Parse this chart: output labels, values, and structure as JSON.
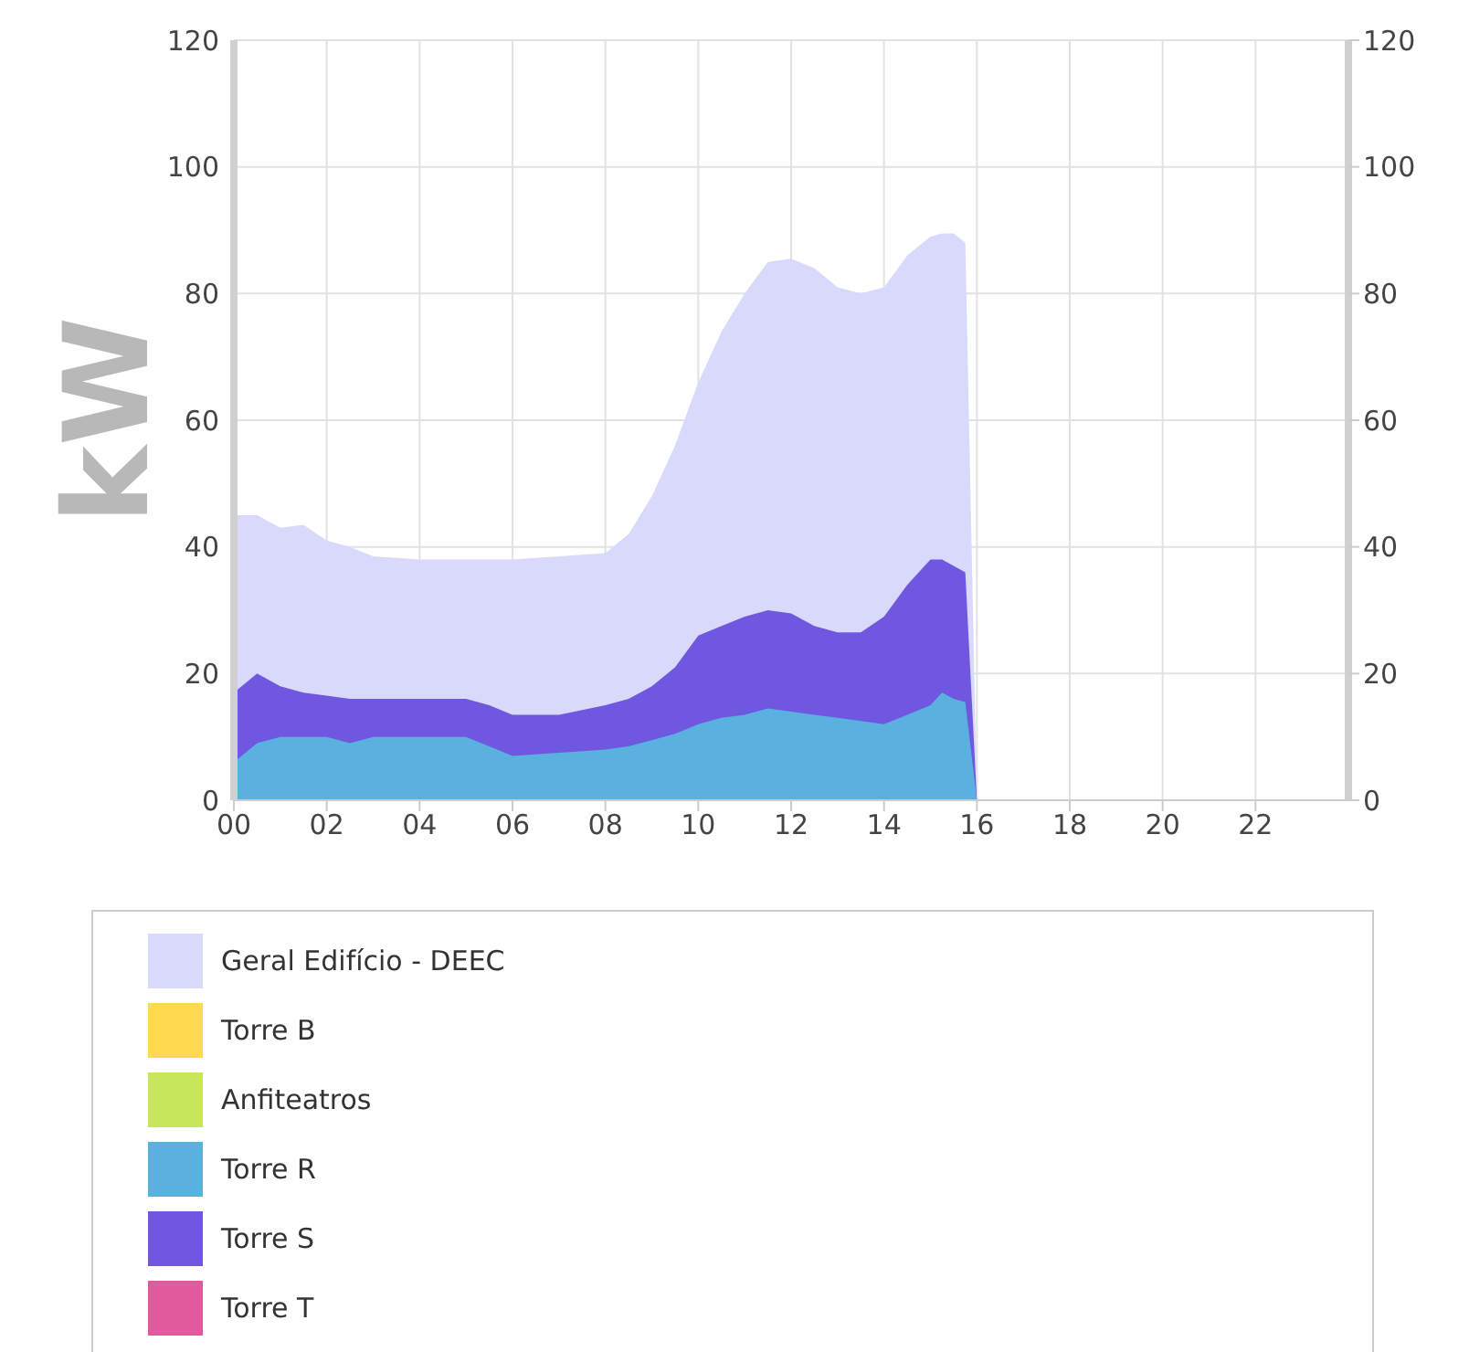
{
  "chart_data": {
    "type": "area",
    "ylabel": "kW",
    "x": [
      0,
      0.5,
      1,
      1.5,
      2,
      2.5,
      3,
      4,
      5,
      5.5,
      6,
      7,
      8,
      8.5,
      9,
      9.5,
      10,
      10.5,
      11,
      11.5,
      12,
      12.5,
      13,
      13.5,
      14,
      14.5,
      15,
      15.25,
      15.5,
      15.75,
      16,
      23.75
    ],
    "series": [
      {
        "name": "Geral Edifício - DEEC",
        "color": "#d9d9fb",
        "values": [
          45,
          45,
          43,
          43.5,
          41,
          40,
          38.5,
          38,
          38,
          38,
          38,
          38.5,
          39,
          42,
          48,
          56,
          66,
          74,
          80,
          85,
          85.5,
          84,
          81,
          80,
          81,
          86,
          89,
          89.5,
          89.5,
          88,
          0,
          0
        ]
      },
      {
        "name": "Torre B",
        "color": "#ffd94f",
        "values": [
          null,
          null,
          null,
          null,
          null,
          null,
          null,
          null,
          null,
          null,
          null,
          null,
          null,
          null,
          null,
          null,
          null,
          null,
          null,
          null,
          null,
          null,
          null,
          null,
          null,
          null,
          null,
          null,
          null,
          null,
          null,
          null
        ]
      },
      {
        "name": "Anfiteatros",
        "color": "#c8e65a",
        "values": [
          null,
          null,
          null,
          null,
          null,
          null,
          null,
          null,
          null,
          null,
          null,
          null,
          null,
          null,
          null,
          null,
          null,
          null,
          null,
          null,
          null,
          null,
          null,
          null,
          null,
          null,
          null,
          null,
          null,
          null,
          null,
          null
        ]
      },
      {
        "name": "Torre R",
        "color": "#5ab1e0",
        "values": [
          6,
          9,
          10,
          10,
          10,
          9,
          10,
          10,
          10,
          8.5,
          7,
          7.5,
          8,
          8.5,
          9.5,
          10.5,
          12,
          13,
          13.5,
          14.5,
          14,
          13.5,
          13,
          12.5,
          12,
          13.5,
          15,
          17,
          16,
          15.5,
          0,
          0
        ]
      },
      {
        "name": "Torre S",
        "color": "#6f57e0",
        "values": [
          17,
          20,
          18,
          17,
          16.5,
          16,
          16,
          16,
          16,
          15,
          13.5,
          13.5,
          15,
          16,
          18,
          21,
          26,
          27.5,
          29,
          30,
          29.5,
          27.5,
          26.5,
          26.5,
          29,
          34,
          38,
          38,
          37,
          36,
          0,
          0
        ]
      },
      {
        "name": "Torre T",
        "color": "#e05a9e",
        "values": [
          null,
          null,
          null,
          null,
          null,
          null,
          null,
          null,
          null,
          null,
          null,
          null,
          null,
          null,
          null,
          null,
          null,
          null,
          null,
          null,
          null,
          null,
          null,
          null,
          null,
          null,
          null,
          null,
          null,
          null,
          null,
          null
        ]
      }
    ],
    "xlim": [
      0,
      24
    ],
    "xticks": [
      {
        "value": 0,
        "label": "00"
      },
      {
        "value": 2,
        "label": "02"
      },
      {
        "value": 4,
        "label": "04"
      },
      {
        "value": 6,
        "label": "06"
      },
      {
        "value": 8,
        "label": "08"
      },
      10,
      12,
      14,
      16,
      18,
      20,
      22
    ],
    "ylim": [
      0,
      120
    ],
    "yticks": [
      0,
      20,
      40,
      60,
      80,
      100,
      120
    ],
    "y2lim": [
      0,
      120
    ],
    "y2ticks": [
      0,
      20,
      40,
      60,
      80,
      100,
      120
    ],
    "grid": true,
    "legend": "bottom"
  }
}
